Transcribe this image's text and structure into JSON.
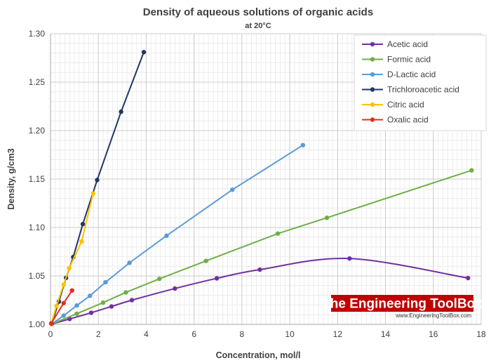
{
  "chart_data": {
    "type": "line",
    "title": "Density of aqueous solutions of organic acids",
    "subtitle": "at 20°C",
    "xlabel": "Concentration, mol/l",
    "ylabel": "Density, g/cm3",
    "xlim": [
      0,
      18
    ],
    "ylim": [
      1.0,
      1.3
    ],
    "x_ticks": [
      0,
      2,
      4,
      6,
      8,
      10,
      12,
      14,
      16,
      18
    ],
    "y_ticks": [
      1.0,
      1.05,
      1.1,
      1.15,
      1.2,
      1.25,
      1.3
    ],
    "x_tick_labels": [
      "0",
      "2",
      "4",
      "6",
      "8",
      "10",
      "12",
      "14",
      "16",
      "18"
    ],
    "y_tick_labels": [
      "1.00",
      "1.05",
      "1.10",
      "1.15",
      "1.20",
      "1.25",
      "1.30"
    ],
    "grid": true,
    "legend_position": "top-right",
    "series": [
      {
        "name": "Acetic acid",
        "color": "#7030a0",
        "smooth": true,
        "x": [
          0.05,
          0.8,
          1.7,
          2.55,
          3.4,
          5.2,
          6.95,
          8.75,
          12.5,
          17.45
        ],
        "y": [
          1.0003,
          1.0056,
          1.012,
          1.0185,
          1.025,
          1.037,
          1.0475,
          1.0565,
          1.068,
          1.0478
        ]
      },
      {
        "name": "Formic acid",
        "color": "#70ad47",
        "smooth": false,
        "x": [
          0.05,
          1.1,
          2.2,
          3.15,
          4.55,
          6.5,
          9.5,
          11.55,
          17.6
        ],
        "y": [
          1.0003,
          1.011,
          1.0225,
          1.033,
          1.047,
          1.0655,
          1.0937,
          1.11,
          1.159
        ]
      },
      {
        "name": "D-Lactic acid",
        "color": "#5b9bd5",
        "smooth": false,
        "x": [
          0.05,
          0.55,
          1.1,
          1.65,
          2.3,
          3.3,
          4.85,
          7.6,
          10.55
        ],
        "y": [
          1.0003,
          1.009,
          1.0195,
          1.0295,
          1.0435,
          1.0635,
          1.0915,
          1.139,
          1.185
        ]
      },
      {
        "name": "Trichloroacetic acid",
        "color": "#1f3864",
        "smooth": false,
        "x": [
          0.05,
          0.35,
          0.65,
          0.95,
          1.35,
          1.95,
          2.95,
          3.9
        ],
        "y": [
          1.0008,
          1.0235,
          1.048,
          1.0695,
          1.1035,
          1.149,
          1.2195,
          1.281
        ]
      },
      {
        "name": "Citric acid",
        "color": "#ffc000",
        "smooth": false,
        "x": [
          0.03,
          0.25,
          0.55,
          0.78,
          1.3,
          1.78
        ],
        "y": [
          1.0005,
          1.019,
          1.041,
          1.058,
          1.0855,
          1.135
        ]
      },
      {
        "name": "Oxalic acid",
        "color": "#e0301e",
        "smooth": false,
        "x": [
          0.03,
          0.55,
          0.9
        ],
        "y": [
          1.001,
          1.022,
          1.035
        ]
      }
    ]
  },
  "watermark": {
    "title": "The Engineering ToolBox",
    "url": "www.EngineeringToolBox.com",
    "color": "#c00000"
  }
}
